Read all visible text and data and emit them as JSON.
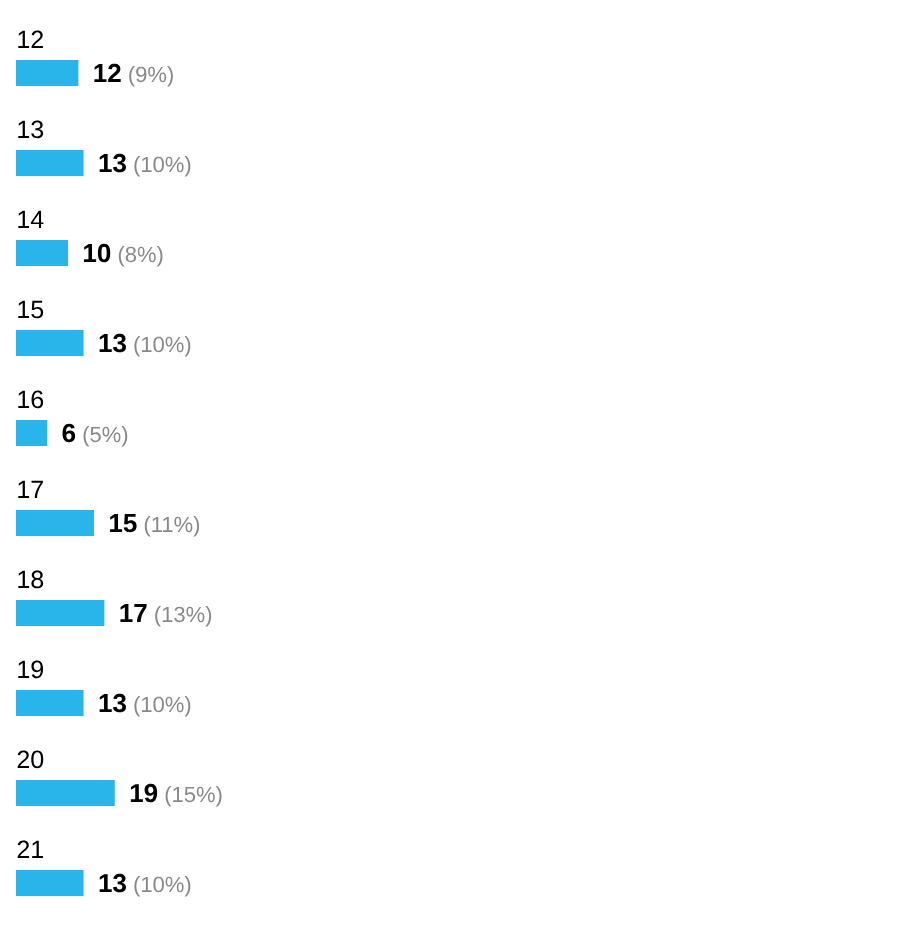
{
  "chart_data": {
    "type": "bar",
    "orientation": "horizontal",
    "categories": [
      "12",
      "13",
      "14",
      "15",
      "16",
      "17",
      "18",
      "19",
      "20",
      "21"
    ],
    "values": [
      12,
      13,
      10,
      13,
      6,
      15,
      17,
      13,
      19,
      13
    ],
    "value_labels": [
      "**12** (9%)",
      "**13** (10%)",
      "**10** (8%)",
      "**13** (10%)",
      "**6** (5%)",
      "**15** (11%)",
      "**17** (13%)",
      "**13** (10%)",
      "**19** (15%)",
      "**13** (10%)"
    ],
    "color": "#29b5ea"
  }
}
